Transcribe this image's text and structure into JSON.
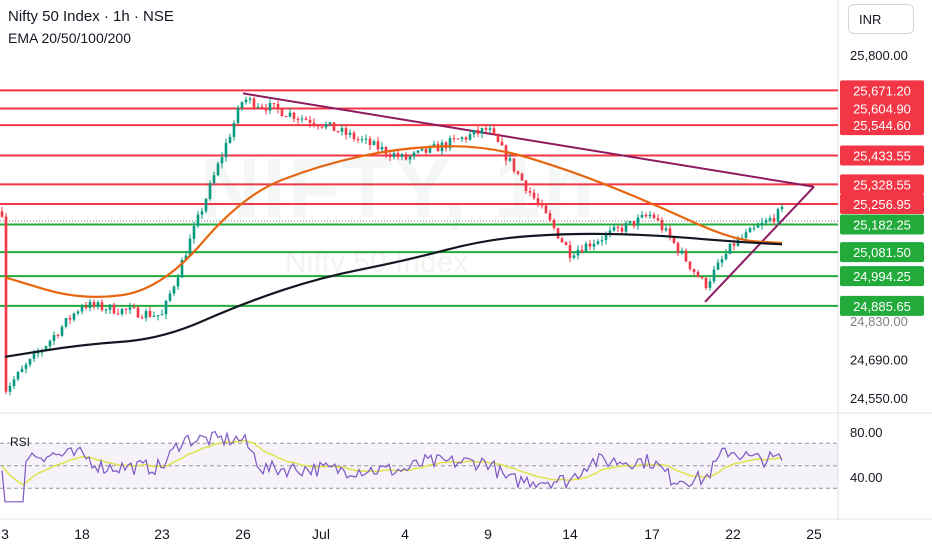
{
  "header": {
    "title": "Nifty 50 Index · 1h · NSE",
    "indicators": "EMA 20/50/100/200",
    "currency": "INR"
  },
  "watermark": {
    "symbol": "NIFTY, 1h",
    "name": "Nifty 50 Index"
  },
  "colors": {
    "resistance": "#f23645",
    "support": "#22ab3b",
    "up": "#089981",
    "down": "#f23645",
    "ema_orange": "#e8650e",
    "ema_black": "#131722",
    "trend": "#8e1a5f",
    "rsi": "#7e57c2",
    "rsi_ma": "#e0e34a"
  },
  "chart_data": {
    "type": "line",
    "price_axis": {
      "ticks": [
        "25,800.00",
        "24,690.00",
        "24,550.00"
      ],
      "partial_tick": "24,830.00"
    },
    "x_axis": {
      "ticks": [
        "3",
        "18",
        "23",
        "26",
        "Jul",
        "4",
        "9",
        "14",
        "17",
        "22",
        "25"
      ]
    },
    "resistance_levels": [
      "25,671.20",
      "25,604.90",
      "25,544.60",
      "25,433.55",
      "25,328.55",
      "25,256.95"
    ],
    "support_levels": [
      "25,182.25",
      "25,081.50",
      "24,994.25",
      "24,885.65"
    ],
    "series": [
      {
        "name": "EMA 20",
        "x": [
          "3",
          "18",
          "23",
          "26",
          "Jul",
          "4",
          "9",
          "14",
          "17",
          "22",
          "24"
        ],
        "values": [
          24990,
          24905,
          24945,
          25290,
          25400,
          25465,
          25470,
          25380,
          25260,
          25125,
          25115
        ]
      },
      {
        "name": "EMA 200",
        "x": [
          "3",
          "18",
          "23",
          "26",
          "Jul",
          "4",
          "9",
          "14",
          "17",
          "22",
          "24"
        ],
        "values": [
          24700,
          24745,
          24765,
          24895,
          24990,
          25050,
          25130,
          25150,
          25145,
          25120,
          25110
        ]
      },
      {
        "name": "Price",
        "x": [
          "3",
          "18",
          "23",
          "26",
          "Jul",
          "4",
          "9",
          "14",
          "17",
          "20",
          "22",
          "24"
        ],
        "values": [
          24580,
          24890,
          24850,
          25640,
          25550,
          25420,
          25530,
          25080,
          25220,
          24960,
          25110,
          25230
        ]
      }
    ],
    "trendlines": [
      {
        "from": [
          "26",
          25660
        ],
        "to": [
          "25",
          25320
        ]
      },
      {
        "from": [
          "20",
          24900
        ],
        "to": [
          "25",
          25320
        ]
      }
    ],
    "rsi": {
      "label": "RSI",
      "ticks": [
        "80.00",
        "40.00"
      ],
      "bands": [
        70,
        30
      ]
    }
  }
}
